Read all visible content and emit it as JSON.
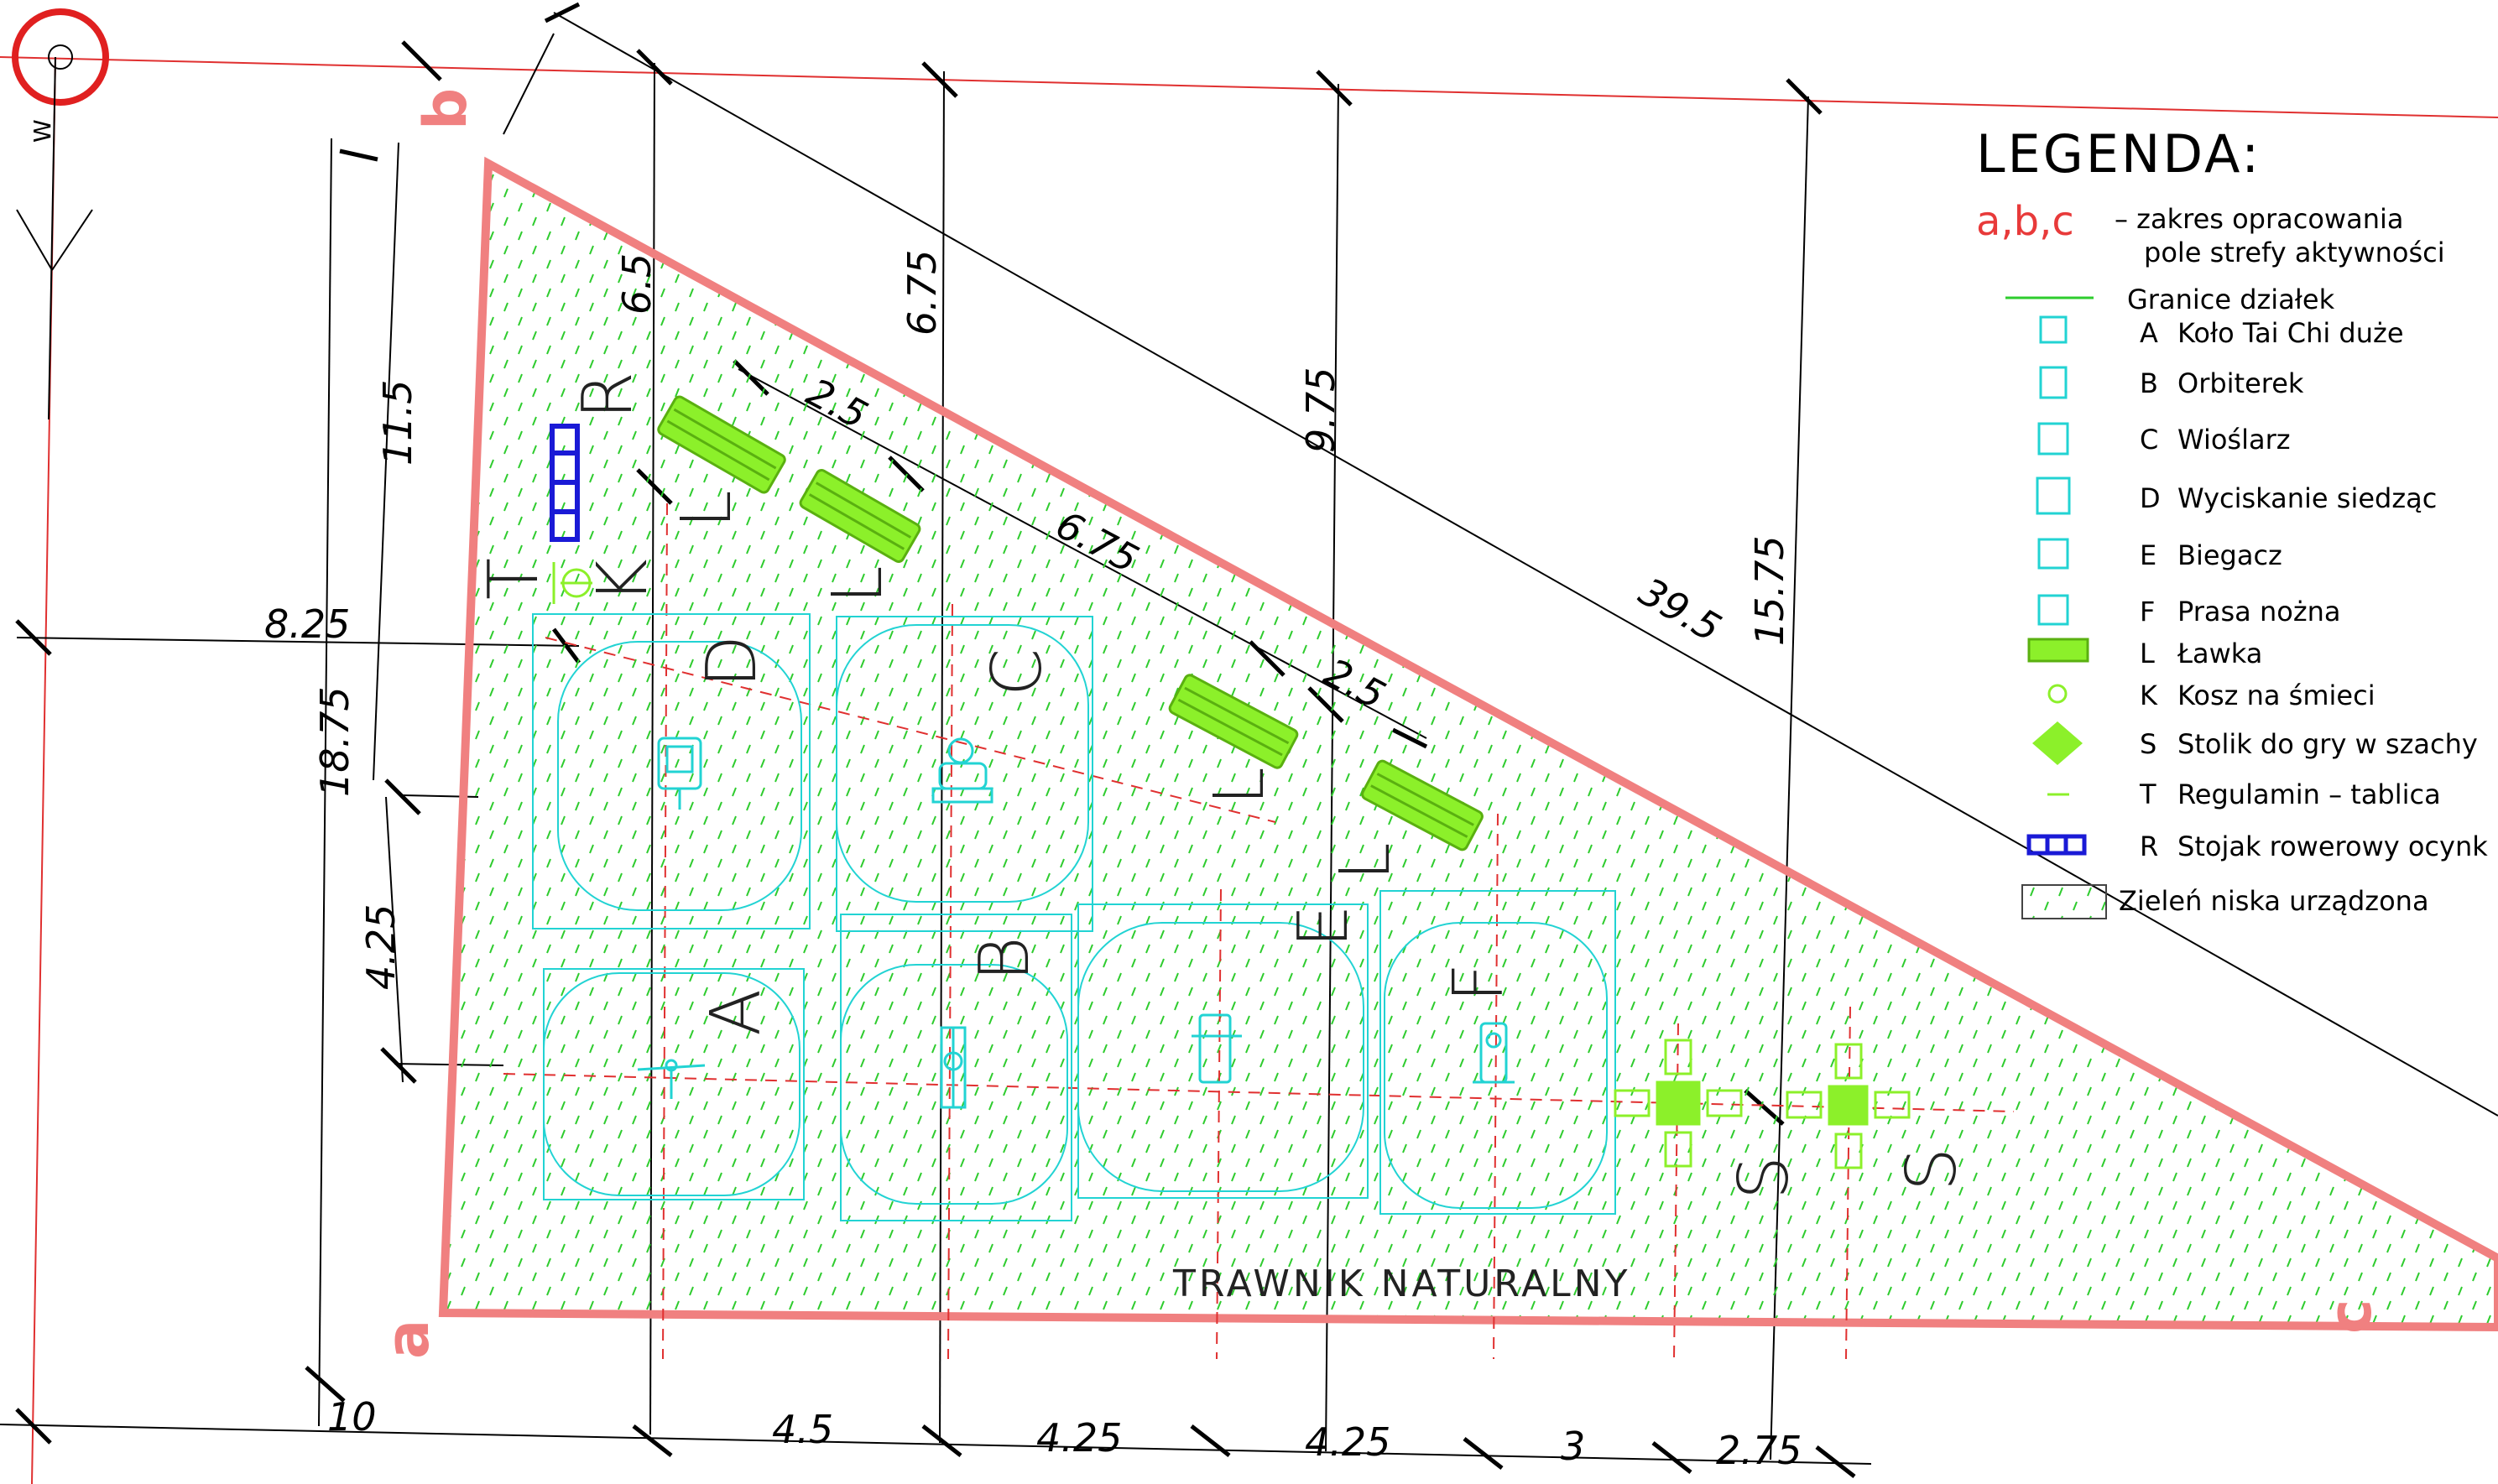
{
  "legend": {
    "title": "LEGENDA:",
    "scope_symbol": "a,b,c",
    "scope_line1": "– zakres opracowania",
    "scope_line2": "pole strefy aktywności",
    "boundaries": "Granice działek",
    "items": [
      {
        "code": "A",
        "label": "Koło Tai Chi duże",
        "icon": "tai-chi-wheel-icon"
      },
      {
        "code": "B",
        "label": "Orbiterek",
        "icon": "orbitrek-icon"
      },
      {
        "code": "C",
        "label": "Wioślarz",
        "icon": "rower-icon"
      },
      {
        "code": "D",
        "label": "Wyciskanie siedząc",
        "icon": "seated-press-icon"
      },
      {
        "code": "E",
        "label": "Biegacz",
        "icon": "runner-icon"
      },
      {
        "code": "F",
        "label": "Prasa nożna",
        "icon": "leg-press-icon"
      },
      {
        "code": "L",
        "label": "Ławka",
        "icon": "bench-icon"
      },
      {
        "code": "K",
        "label": "Kosz na śmieci",
        "icon": "trash-bin-icon"
      },
      {
        "code": "S",
        "label": "Stolik do gry w szachy",
        "icon": "chess-table-icon"
      },
      {
        "code": "T",
        "label": "Regulamin – tablica",
        "icon": "sign-board-icon"
      },
      {
        "code": "R",
        "label": "Stojak rowerowy ocynk",
        "icon": "bike-rack-icon"
      }
    ],
    "greenery": "Zieleń niska urządzona"
  },
  "plan": {
    "area_label": "TRAWNIK NATURALNY",
    "corner_a": "a",
    "corner_b": "b",
    "corner_c": "c",
    "north_mark": "W",
    "equipment_letters": [
      "A",
      "B",
      "C",
      "D",
      "E",
      "F",
      "K",
      "L",
      "L",
      "L",
      "L",
      "R",
      "S",
      "S",
      "T"
    ],
    "dimensions": {
      "bottom": [
        "10",
        "4.5",
        "4.25",
        "4.25",
        "3",
        "2.75"
      ],
      "left": [
        "11.5",
        "18.75",
        "4.25"
      ],
      "left_offset": "8.25",
      "verticals": [
        "6.5",
        "6.75",
        "9.75",
        "15.75"
      ],
      "diagonal": [
        "2.5",
        "6.75",
        "2.5",
        "39.5"
      ]
    }
  },
  "colors": {
    "scope_red": "#f08080",
    "equipment_cyan": "#22d3d3",
    "bench_green": "#8cf02a",
    "rack_blue": "#1a1ad6",
    "hatch_green": "#2ecc2e",
    "axis_red": "#e03030"
  }
}
